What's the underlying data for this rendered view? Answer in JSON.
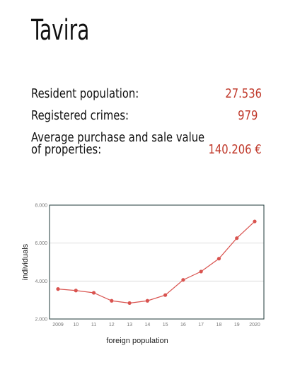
{
  "title": "Tavira",
  "stats": [
    {
      "label": "Resident population:",
      "value": "27.536"
    },
    {
      "label": "Registered crimes:",
      "value": "979"
    },
    {
      "label_lines": [
        "Average purchase and sale value",
        "of properties:"
      ],
      "value": "140.206 €"
    }
  ],
  "colors": {
    "accent": "#c0392b",
    "line": "#d9534f",
    "axis": "#1f3a3a"
  },
  "chart_data": {
    "type": "line",
    "title": "",
    "xlabel": "foreign population",
    "ylabel": "individuals",
    "categories": [
      "2009",
      "10",
      "11",
      "12",
      "13",
      "14",
      "15",
      "16",
      "17",
      "18",
      "19",
      "2020"
    ],
    "ylim": [
      2000,
      8000
    ],
    "yticks": [
      2000,
      4000,
      6000,
      8000
    ],
    "ytick_labels": [
      "2.000",
      "4.000",
      "6.000",
      "8.000"
    ],
    "grid": true,
    "legend": "none",
    "series": [
      {
        "values": [
          3580,
          3500,
          3380,
          2960,
          2840,
          2960,
          3260,
          4060,
          4500,
          5180,
          6260,
          7140
        ]
      }
    ]
  }
}
